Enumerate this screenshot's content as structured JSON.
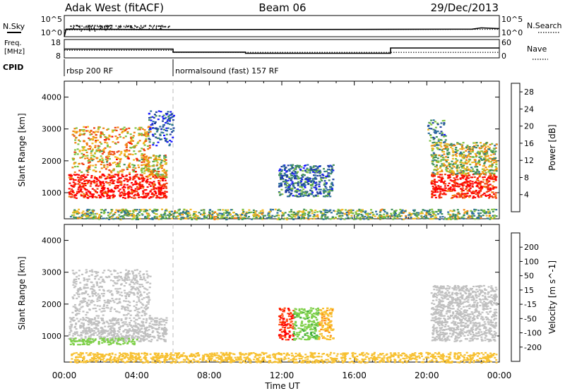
{
  "header": {
    "station": "Adak West (fitACF)",
    "beam": "Beam 06",
    "date": "29/Dec/2013"
  },
  "left_labels": {
    "nsky": "N.Sky",
    "freq_line1": "Freq.",
    "freq_line2": "[MHz]",
    "cpid": "CPID"
  },
  "right_labels": {
    "nsearch": "N.Search",
    "nave": "Nave"
  },
  "scales": {
    "noise_left_top": "10^5",
    "noise_left_bottom": "10^0",
    "noise_right_top": "10^5",
    "noise_right_bottom": "10^0",
    "freq_left_top": "18",
    "freq_left_bottom": "8",
    "nave_right_top": "60",
    "nave_right_bottom": "0"
  },
  "cpid_segments": [
    {
      "label": "rbsp 200 RF",
      "start_hour": 0,
      "end_hour": 6
    },
    {
      "label": "normalsound (fast) 157 RF",
      "start_hour": 6,
      "end_hour": 24
    }
  ],
  "time_axis": {
    "label": "Time UT",
    "ticks": [
      "00:00",
      "04:00",
      "08:00",
      "12:00",
      "16:00",
      "20:00",
      "00:00"
    ]
  },
  "colors": {
    "power": [
      "#1a1aff",
      "#2040a0",
      "#2e6f9e",
      "#3f8f5a",
      "#7fc241",
      "#f0b820",
      "#f08010",
      "#f04010",
      "#ff0000"
    ],
    "velocity": [
      "#ff0000",
      "#ff4a10",
      "#ff8a10",
      "#f7c030",
      "#c0c0c0",
      "#7fd04a",
      "#3aaa3a",
      "#2e6fa8",
      "#2020d0"
    ],
    "ground": "#b8b8b8"
  },
  "chart_data": [
    {
      "type": "line",
      "panel": "noise",
      "title": "N.Sky / N.Search",
      "series": [
        {
          "name": "N.Sky",
          "x_hours": [
            0,
            0.1,
            6,
            12,
            18,
            22.5,
            23,
            24
          ],
          "values": [
            1,
            60,
            45,
            50,
            55,
            60,
            120,
            80
          ]
        },
        {
          "name": "N.Search",
          "x_hours": [
            0,
            6,
            12,
            18,
            24
          ],
          "values": [
            40,
            45,
            48,
            50,
            55
          ]
        }
      ],
      "ylim_log10": [
        0,
        5
      ]
    },
    {
      "type": "line",
      "panel": "frequency",
      "series": [
        {
          "name": "Freq. [MHz]",
          "x_hours": [
            0,
            6,
            6,
            10,
            10,
            18,
            18,
            24
          ],
          "values": [
            12.8,
            12.8,
            11.1,
            11.1,
            10.5,
            10.5,
            13.4,
            13.4
          ]
        },
        {
          "name": "Nave",
          "x_hours": [
            0,
            6,
            6,
            24
          ],
          "values": [
            25,
            25,
            18,
            18
          ]
        }
      ],
      "ylim_freq": [
        8,
        18
      ],
      "ylim_nave": [
        0,
        60
      ]
    },
    {
      "type": "heatmap",
      "panel": "power",
      "xlabel": "",
      "ylabel": "Slant Range [km]",
      "xlim_hours": [
        0,
        24
      ],
      "ylim_km": [
        180,
        4500
      ],
      "yticks": [
        1000,
        2000,
        3000,
        4000
      ],
      "colorbar": {
        "label": "Power [dB]",
        "ticks": [
          4,
          8,
          12,
          16,
          20,
          24,
          28
        ],
        "range": [
          0,
          30
        ]
      },
      "regions": [
        {
          "hours": [
            0.2,
            5.6
          ],
          "km": [
            850,
            1600
          ],
          "value_db": 29
        },
        {
          "hours": [
            0.4,
            4.7
          ],
          "km": [
            1650,
            3100
          ],
          "value_db": 20
        },
        {
          "hours": [
            4.2,
            5.6
          ],
          "km": [
            1500,
            2200
          ],
          "value_db": 18
        },
        {
          "hours": [
            4.6,
            6.0
          ],
          "km": [
            2500,
            3600
          ],
          "value_db": 6
        },
        {
          "hours": [
            11.8,
            14.8
          ],
          "km": [
            900,
            1900
          ],
          "value_db": 8
        },
        {
          "hours": [
            20.2,
            23.8
          ],
          "km": [
            850,
            1600
          ],
          "value_db": 29
        },
        {
          "hours": [
            20.2,
            23.8
          ],
          "km": [
            1600,
            2600
          ],
          "value_db": 16
        },
        {
          "hours": [
            20.0,
            21.0
          ],
          "km": [
            2600,
            3300
          ],
          "value_db": 10
        },
        {
          "hours": [
            0.3,
            23.8
          ],
          "km": [
            180,
            500
          ],
          "value_db": 14
        }
      ]
    },
    {
      "type": "heatmap",
      "panel": "velocity",
      "xlabel": "Time UT",
      "ylabel": "Slant Range [km]",
      "xlim_hours": [
        0,
        24
      ],
      "ylim_km": [
        180,
        4500
      ],
      "yticks": [
        1000,
        2000,
        3000,
        4000
      ],
      "colorbar": {
        "label": "Velocity [m s^-1]",
        "ticks": [
          200,
          100,
          50,
          15,
          -15,
          -50,
          -100,
          -200
        ],
        "range": [
          -250,
          250
        ]
      },
      "regions": [
        {
          "hours": [
            0.2,
            5.6
          ],
          "km": [
            850,
            1600
          ],
          "value_ms": 0
        },
        {
          "hours": [
            0.4,
            4.7
          ],
          "km": [
            1650,
            3100
          ],
          "value_ms": 0
        },
        {
          "hours": [
            0.2,
            4.0
          ],
          "km": [
            750,
            950
          ],
          "value_ms": 30
        },
        {
          "hours": [
            11.8,
            12.6
          ],
          "km": [
            900,
            1900
          ],
          "value_ms": -200
        },
        {
          "hours": [
            12.6,
            14.0
          ],
          "km": [
            900,
            1900
          ],
          "value_ms": 40
        },
        {
          "hours": [
            14.0,
            14.8
          ],
          "km": [
            900,
            1900
          ],
          "value_ms": -40
        },
        {
          "hours": [
            20.2,
            23.8
          ],
          "km": [
            850,
            2600
          ],
          "value_ms": 0
        },
        {
          "hours": [
            0.3,
            23.8
          ],
          "km": [
            180,
            500
          ],
          "value_ms": -30
        }
      ]
    }
  ]
}
